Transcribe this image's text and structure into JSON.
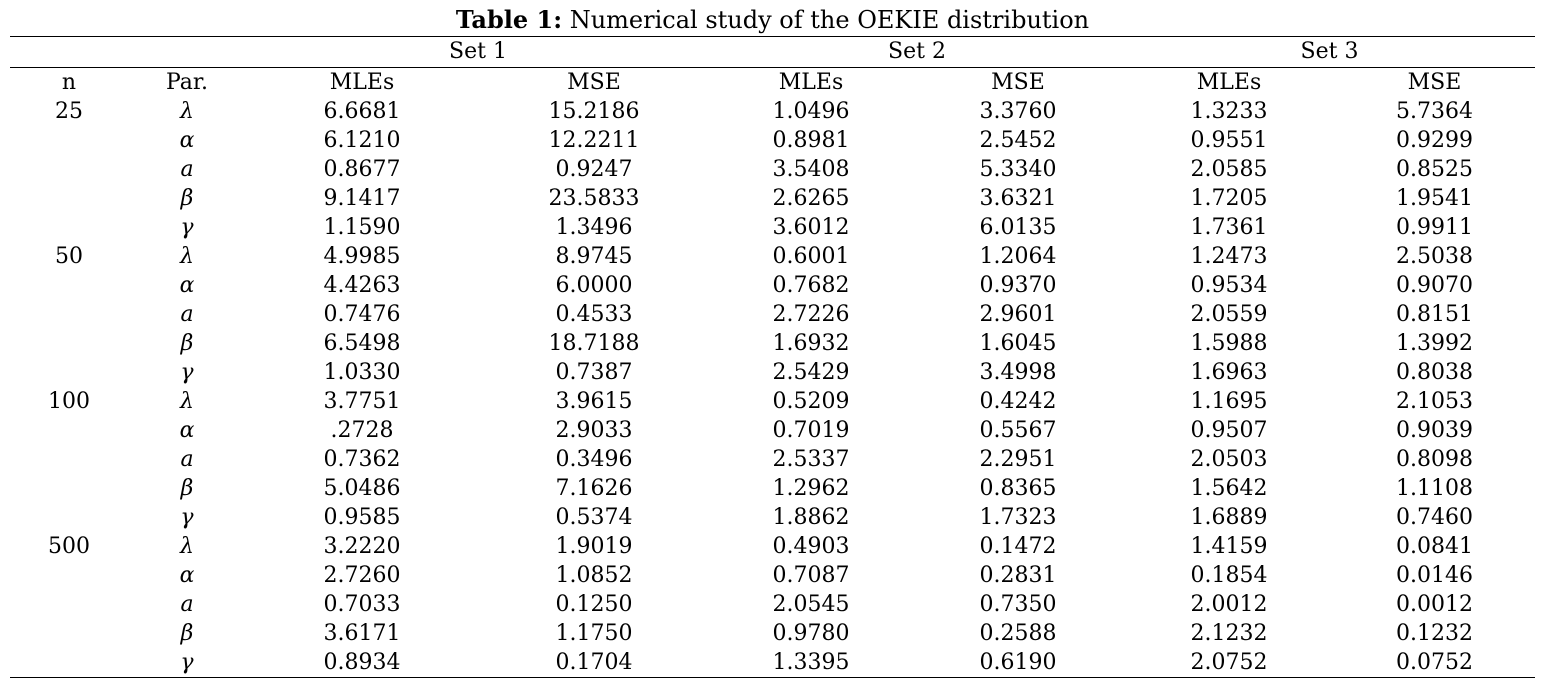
{
  "caption": {
    "label": "Table 1:",
    "text": "Numerical study of the OEKIE distribution"
  },
  "sets": [
    "Set 1",
    "Set 2",
    "Set 3"
  ],
  "columns": [
    "n",
    "Par.",
    "MLEs",
    "MSE",
    "MLEs",
    "MSE",
    "MLEs",
    "MSE"
  ],
  "rows": [
    [
      "25",
      "λ",
      "6.6681",
      "15.2186",
      "1.0496",
      "3.3760",
      "1.3233",
      "5.7364"
    ],
    [
      "",
      "α",
      "6.1210",
      "12.2211",
      "0.8981",
      "2.5452",
      "0.9551",
      "0.9299"
    ],
    [
      "",
      "a",
      "0.8677",
      "0.9247",
      "3.5408",
      "5.3340",
      "2.0585",
      "0.8525"
    ],
    [
      "",
      "β",
      "9.1417",
      "23.5833",
      "2.6265",
      "3.6321",
      "1.7205",
      "1.9541"
    ],
    [
      "",
      "γ",
      "1.1590",
      "1.3496",
      "3.6012",
      "6.0135",
      "1.7361",
      "0.9911"
    ],
    [
      "50",
      "λ",
      "4.9985",
      "8.9745",
      "0.6001",
      "1.2064",
      "1.2473",
      "2.5038"
    ],
    [
      "",
      "α",
      "4.4263",
      "6.0000",
      "0.7682",
      "0.9370",
      "0.9534",
      "0.9070"
    ],
    [
      "",
      "a",
      "0.7476",
      "0.4533",
      "2.7226",
      "2.9601",
      "2.0559",
      "0.8151"
    ],
    [
      "",
      "β",
      "6.5498",
      "18.7188",
      "1.6932",
      "1.6045",
      "1.5988",
      "1.3992"
    ],
    [
      "",
      "γ",
      "1.0330",
      "0.7387",
      "2.5429",
      "3.4998",
      "1.6963",
      "0.8038"
    ],
    [
      "100",
      "λ",
      "3.7751",
      "3.9615",
      "0.5209",
      "0.4242",
      "1.1695",
      "2.1053"
    ],
    [
      "",
      "α",
      ".2728",
      "2.9033",
      "0.7019",
      "0.5567",
      "0.9507",
      "0.9039"
    ],
    [
      "",
      "a",
      "0.7362",
      "0.3496",
      "2.5337",
      "2.2951",
      "2.0503",
      "0.8098"
    ],
    [
      "",
      "β",
      "5.0486",
      "7.1626",
      "1.2962",
      "0.8365",
      "1.5642",
      "1.1108"
    ],
    [
      "",
      "γ",
      "0.9585",
      "0.5374",
      "1.8862",
      "1.7323",
      "1.6889",
      "0.7460"
    ],
    [
      "500",
      "λ",
      "3.2220",
      "1.9019",
      "0.4903",
      "0.1472",
      "1.4159",
      "0.0841"
    ],
    [
      "",
      "α",
      "2.7260",
      "1.0852",
      "0.7087",
      "0.2831",
      "0.1854",
      "0.0146"
    ],
    [
      "",
      "a",
      "0.7033",
      "0.1250",
      "2.0545",
      "0.7350",
      "2.0012",
      "0.0012"
    ],
    [
      "",
      "β",
      "3.6171",
      "1.1750",
      "0.9780",
      "0.2588",
      "2.1232",
      "0.1232"
    ],
    [
      "",
      "γ",
      "0.8934",
      "0.1704",
      "1.3395",
      "0.6190",
      "2.0752",
      "0.0752"
    ]
  ]
}
